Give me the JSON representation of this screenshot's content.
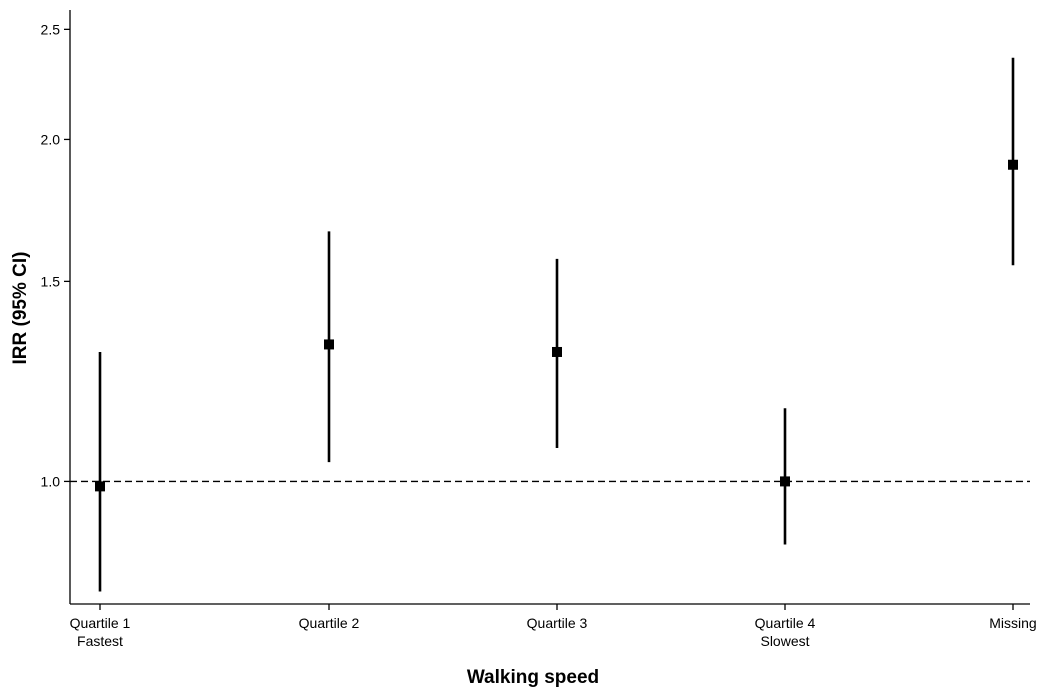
{
  "chart_data": {
    "type": "scatter",
    "title": "",
    "xlabel": "Walking speed",
    "ylabel": "IRR (95% CI)",
    "y_scale": "log",
    "ylim": [
      0.78,
      2.6
    ],
    "y_ticks": [
      {
        "value": 1.0,
        "label": "1.0"
      },
      {
        "value": 1.5,
        "label": "1.5"
      },
      {
        "value": 2.0,
        "label": "2.0"
      },
      {
        "value": 2.5,
        "label": "2.5"
      }
    ],
    "categories": [
      {
        "line1": "Quartile 1",
        "line2": "Fastest"
      },
      {
        "line1": "Quartile 2",
        "line2": ""
      },
      {
        "line1": "Quartile 3",
        "line2": ""
      },
      {
        "line1": "Quartile 4",
        "line2": "Slowest"
      },
      {
        "line1": "Missing",
        "line2": ""
      }
    ],
    "series": [
      {
        "estimates": [
          0.99,
          1.32,
          1.3,
          1.0,
          1.9
        ],
        "ci_lower": [
          0.8,
          1.04,
          1.07,
          0.88,
          1.55
        ],
        "ci_upper": [
          1.3,
          1.66,
          1.57,
          1.16,
          2.36
        ]
      }
    ],
    "reference_line": 1.0,
    "grid": false,
    "colors": {
      "marker": "#000000",
      "reference_line": "#000000",
      "axis": "#000000"
    }
  }
}
